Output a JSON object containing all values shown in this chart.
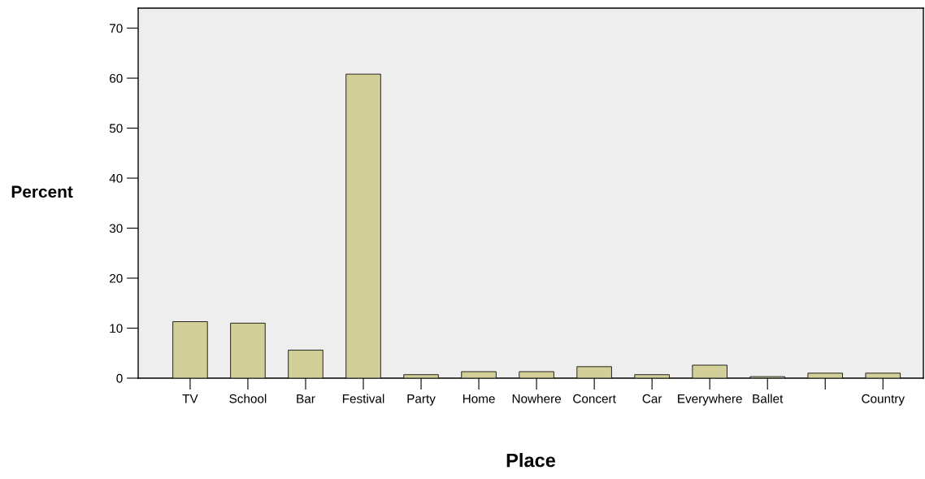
{
  "chart_data": {
    "type": "bar",
    "xlabel": "Place",
    "ylabel": "Percent",
    "categories": [
      "TV",
      "School",
      "Bar",
      "Festival",
      "Party",
      "Home",
      "Nowhere",
      "Concert",
      "Car",
      "Everywhere",
      "Ballet",
      null,
      "Country"
    ],
    "values": [
      11.3,
      11.0,
      5.6,
      60.8,
      0.7,
      1.3,
      1.3,
      2.3,
      0.7,
      2.6,
      0.3,
      1.0,
      1.0
    ],
    "color": "#d3cf98",
    "ylim": [
      0,
      74
    ],
    "yticks": [
      0,
      10,
      20,
      30,
      40,
      50,
      60,
      70
    ],
    "grid": false
  }
}
